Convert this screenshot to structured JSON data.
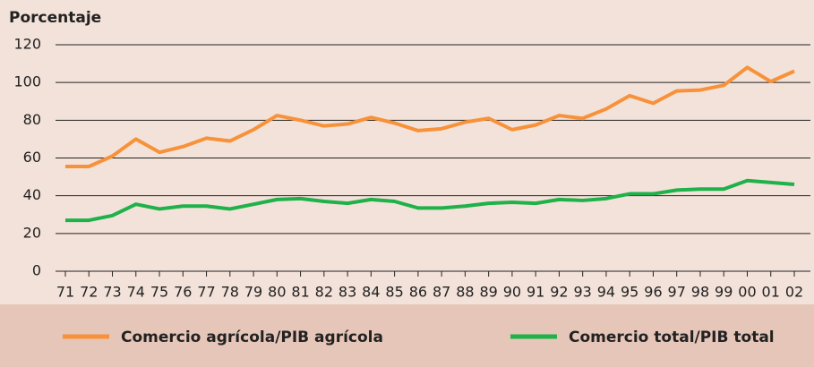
{
  "chart_data": {
    "type": "line",
    "y_label": "Porcentaje",
    "categories": [
      "71",
      "72",
      "73",
      "74",
      "75",
      "76",
      "77",
      "78",
      "79",
      "80",
      "81",
      "82",
      "83",
      "84",
      "85",
      "86",
      "87",
      "88",
      "89",
      "90",
      "91",
      "92",
      "93",
      "94",
      "95",
      "96",
      "97",
      "98",
      "99",
      "00",
      "01",
      "02"
    ],
    "series": [
      {
        "name": "Comercio agrícola/PIB agrícola",
        "color": "#f7923a",
        "values": [
          55.5,
          55.5,
          61,
          70,
          63,
          66,
          70.5,
          69,
          75,
          82.5,
          80,
          77,
          78,
          81.5,
          78.5,
          74.5,
          75.5,
          79,
          81,
          75,
          77.5,
          82.5,
          81,
          86,
          93,
          89,
          95.5,
          96,
          98.5,
          108,
          100.5,
          106
        ]
      },
      {
        "name": "Comercio total/PIB total",
        "color": "#1fb14a",
        "values": [
          27,
          27,
          29.5,
          35.5,
          33,
          34.5,
          34.5,
          33,
          35.5,
          38,
          38.5,
          37,
          36,
          38,
          37,
          33.5,
          33.5,
          34.5,
          36,
          36.5,
          36,
          38,
          37.5,
          38.5,
          41,
          41,
          43,
          43.5,
          43.5,
          48,
          47,
          46
        ]
      }
    ],
    "ylim": [
      0,
      120
    ],
    "yticks": [
      0,
      20,
      40,
      60,
      80,
      100,
      120
    ],
    "grid": true
  }
}
